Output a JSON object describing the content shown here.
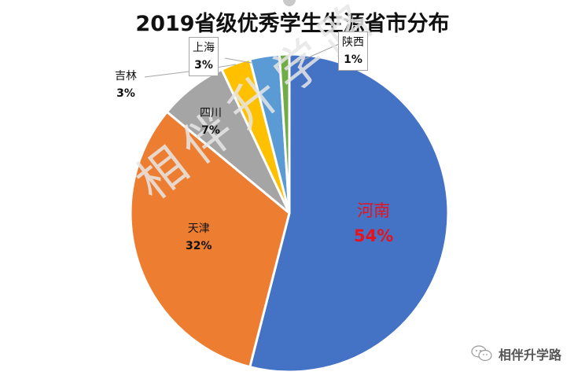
{
  "chart_data": {
    "type": "pie",
    "title": "2019省级优秀学生生源省市分布",
    "categories": [
      "河南",
      "天津",
      "四川",
      "吉林",
      "上海",
      "陕西"
    ],
    "values": [
      54,
      32,
      7,
      3,
      3,
      1
    ],
    "value_format": "percent",
    "colors": [
      "#4472c4",
      "#ed7d31",
      "#a5a5a5",
      "#ffc000",
      "#5b9bd5",
      "#70ad47"
    ],
    "start_angle": "12 o'clock",
    "direction": "clockwise",
    "legend": "none",
    "data_labels": [
      {
        "name": "河南",
        "pct": "54%",
        "color": "#e8121c"
      },
      {
        "name": "天津",
        "pct": "32%"
      },
      {
        "name": "四川",
        "pct": "7%"
      },
      {
        "name": "吉林",
        "pct": "3%"
      },
      {
        "name": "上海",
        "pct": "3%"
      },
      {
        "name": "陕西",
        "pct": "1%"
      }
    ]
  },
  "watermark": "相伴升学路",
  "brand": {
    "label": "相伴升学路",
    "icon": "wechat-icon"
  }
}
